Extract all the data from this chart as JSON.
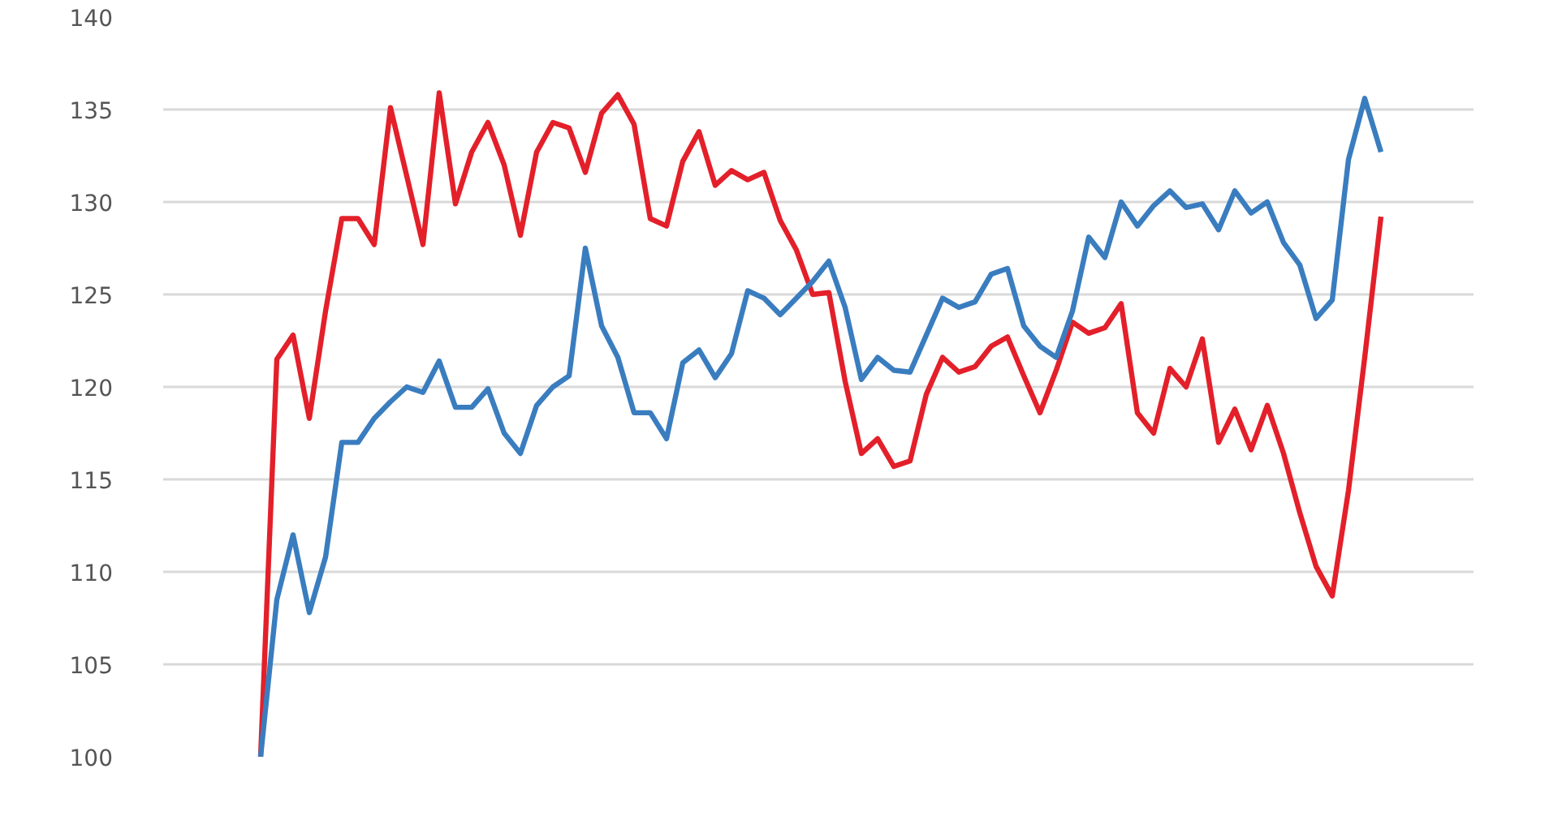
{
  "chart_data": {
    "type": "line",
    "ylim": [
      100,
      140
    ],
    "yticks": [
      100,
      105,
      110,
      115,
      120,
      125,
      130,
      135,
      140
    ],
    "grid": "y",
    "tick_labels": "y",
    "line_style": "solid",
    "categories": [
      null,
      null,
      null,
      null,
      null,
      null,
      null,
      null,
      null,
      null,
      null,
      null,
      null,
      null,
      null,
      null,
      null,
      null,
      null,
      null,
      null,
      null,
      null,
      null,
      null,
      null,
      null,
      null,
      null,
      null,
      null,
      null,
      null,
      null,
      null,
      null,
      null,
      null,
      null,
      null,
      null,
      null,
      null,
      null,
      null,
      null,
      null,
      null,
      null,
      null,
      null,
      null,
      null,
      null,
      null,
      null,
      null,
      null,
      null,
      null,
      null,
      null,
      null,
      null,
      null,
      null,
      null,
      null,
      null,
      null
    ],
    "series": [
      {
        "color": "#e3202a",
        "values": [
          100,
          121.5,
          122.8,
          118.3,
          124.1,
          129.1,
          129.1,
          127.7,
          135.1,
          131.4,
          127.7,
          135.9,
          129.9,
          132.7,
          134.3,
          132.0,
          128.2,
          132.7,
          134.3,
          134.0,
          131.6,
          134.8,
          135.8,
          134.2,
          129.1,
          128.7,
          132.2,
          133.8,
          130.9,
          131.7,
          131.2,
          131.6,
          129.0,
          127.4,
          125.0,
          125.1,
          120.3,
          116.4,
          117.2,
          115.7,
          116.0,
          119.6,
          121.6,
          120.8,
          121.1,
          122.2,
          122.7,
          120.6,
          118.6,
          120.9,
          123.5,
          122.9,
          123.2,
          124.5,
          118.6,
          117.5,
          121.0,
          120.0,
          122.6,
          117.0,
          118.8,
          116.6,
          119.0,
          116.4,
          113.2,
          110.3,
          108.7,
          114.4,
          121.6,
          129.2
        ]
      },
      {
        "color": "#3a7dbf",
        "values": [
          100,
          108.5,
          112.0,
          107.8,
          110.8,
          117,
          117,
          118.3,
          119.2,
          120.0,
          119.7,
          121.4,
          118.9,
          118.9,
          119.9,
          117.5,
          116.4,
          119.0,
          120.0,
          120.6,
          127.5,
          123.3,
          121.6,
          118.6,
          118.6,
          117.2,
          121.3,
          122.0,
          120.5,
          121.8,
          125.2,
          124.8,
          123.9,
          124.8,
          125.7,
          126.8,
          124.3,
          120.4,
          121.6,
          120.9,
          120.8,
          122.8,
          124.8,
          124.3,
          124.6,
          126.1,
          126.4,
          123.3,
          122.2,
          121.6,
          124.1,
          128.1,
          127.0,
          130.0,
          128.7,
          129.8,
          130.6,
          129.7,
          129.9,
          128.5,
          130.6,
          129.4,
          130.0,
          127.8,
          126.6,
          123.7,
          124.7,
          132.3,
          135.6,
          132.7
        ]
      }
    ]
  }
}
